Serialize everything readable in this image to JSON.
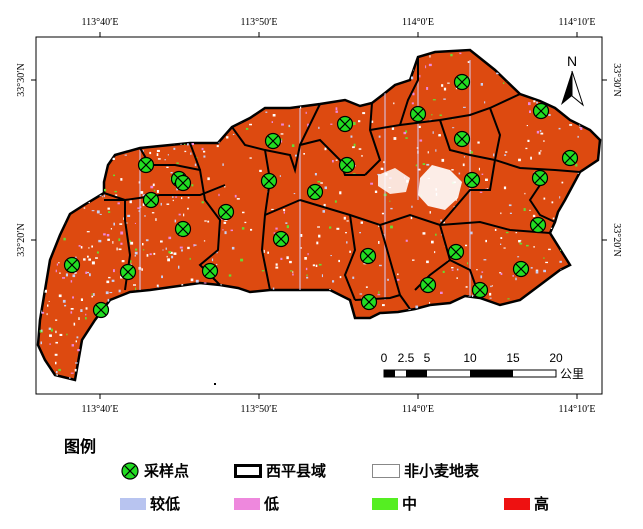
{
  "axes": {
    "top": [
      "113°40′E",
      "113°50′E",
      "114°0′E",
      "114°10′E"
    ],
    "bottom": [
      "113°40′E",
      "113°50′E",
      "114°0′E",
      "114°10′E"
    ],
    "left": [
      "33°30′N",
      "33°20′N"
    ],
    "right": [
      "33°30′N",
      "33°20′N"
    ]
  },
  "north_arrow": "N",
  "scale_bar": {
    "ticks": [
      "0",
      "2.5",
      "5",
      "10",
      "15",
      "20"
    ],
    "unit": "公里"
  },
  "legend": {
    "title": "图例",
    "items": [
      {
        "label": "采样点",
        "symbol": "sample-point",
        "color": "#22dd22"
      },
      {
        "label": "西平县域",
        "symbol": "boundary",
        "color": "#000000"
      },
      {
        "label": "非小麦地表",
        "symbol": "box",
        "color": "#ffffff"
      },
      {
        "label": "较低",
        "symbol": "box",
        "color": "#b8c4f0"
      },
      {
        "label": "低",
        "symbol": "box",
        "color": "#ee88dd"
      },
      {
        "label": "中",
        "symbol": "box",
        "color": "#55ee22"
      },
      {
        "label": "高",
        "symbol": "box",
        "color": "#ee1111"
      }
    ]
  },
  "colors": {
    "wheat_fill": "#dd4a10",
    "boundary": "#000000",
    "sample_point": "#22dd22"
  }
}
